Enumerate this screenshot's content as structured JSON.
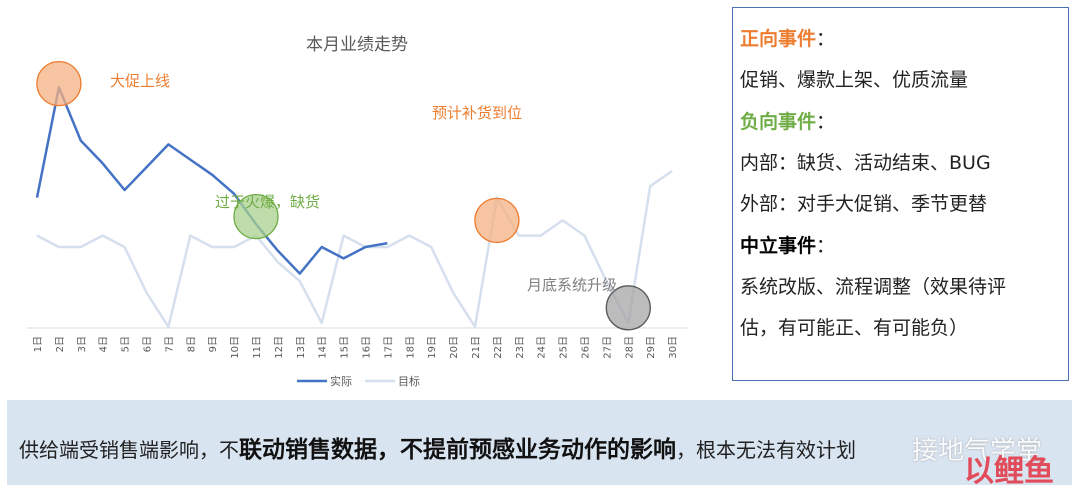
{
  "chart_data": {
    "type": "line",
    "title": "本月业绩走势",
    "categories": [
      "1日",
      "2日",
      "3日",
      "4日",
      "5日",
      "6日",
      "7日",
      "8日",
      "9日",
      "10日",
      "11日",
      "12日",
      "13日",
      "14日",
      "15日",
      "16日",
      "17日",
      "18日",
      "19日",
      "20日",
      "21日",
      "22日",
      "23日",
      "24日",
      "25日",
      "26日",
      "27日",
      "28日",
      "29日",
      "30日"
    ],
    "series": [
      {
        "name": "实际",
        "color": "#4472c4",
        "values": [
          48,
          77,
          63,
          57,
          50,
          56,
          62,
          58,
          54,
          49,
          41,
          34,
          28,
          35,
          32,
          35,
          36,
          null,
          null,
          null,
          null,
          null,
          null,
          null,
          null,
          null,
          null,
          null,
          null,
          null
        ]
      },
      {
        "name": "目标",
        "color": "#d6dfee",
        "values": [
          38,
          35,
          35,
          38,
          35,
          23,
          14,
          38,
          35,
          35,
          38,
          31,
          26,
          15,
          38,
          35,
          35,
          38,
          35,
          23,
          14,
          48,
          38,
          38,
          42,
          38,
          26,
          15,
          51,
          55
        ]
      }
    ],
    "legend_position": "bottom",
    "ylim": [
      0,
      100
    ],
    "grid": false,
    "annotations": [
      {
        "text": "大促上线",
        "color": "#ed7d31",
        "circle_at_day": 2,
        "circle_value": 78,
        "circle_color": "#f4b183"
      },
      {
        "text": "过于火爆，缺货",
        "color": "#70ad47",
        "circle_at_day": 11,
        "circle_value": 43,
        "circle_color": "#a9d18e"
      },
      {
        "text": "预计补货到位",
        "color": "#ed7d31",
        "circle_at_day": 22,
        "circle_value": 42,
        "circle_color": "#f4b183"
      },
      {
        "text": "月底系统升级",
        "color": "#7f7f7f",
        "circle_at_day": 28,
        "circle_value": 19,
        "circle_color": "#a6a6a6"
      }
    ]
  },
  "events": {
    "positive_title": "正向事件",
    "positive_color": "#ed7d31",
    "positive_text": "促销、爆款上架、优质流量",
    "negative_title": "负向事件",
    "negative_color": "#70ad47",
    "negative_internal": "内部：缺货、活动结束、BUG",
    "negative_external": "外部：对手大促销、季节更替",
    "neutral_title": "中立事件",
    "neutral_color": "#000000",
    "neutral_text_1": "系统改版、流程调整（效果待评",
    "neutral_text_2": "估，有可能正、有可能负）",
    "colon": "："
  },
  "bottom": {
    "text_pre": "供给端受销售端影响，不",
    "text_bold": "联动销售数据，不提前预感业务动作的影响",
    "text_post": "，根本无法有效计划",
    "watermark": "接地气学堂",
    "watermark2": "以鲤鱼"
  }
}
